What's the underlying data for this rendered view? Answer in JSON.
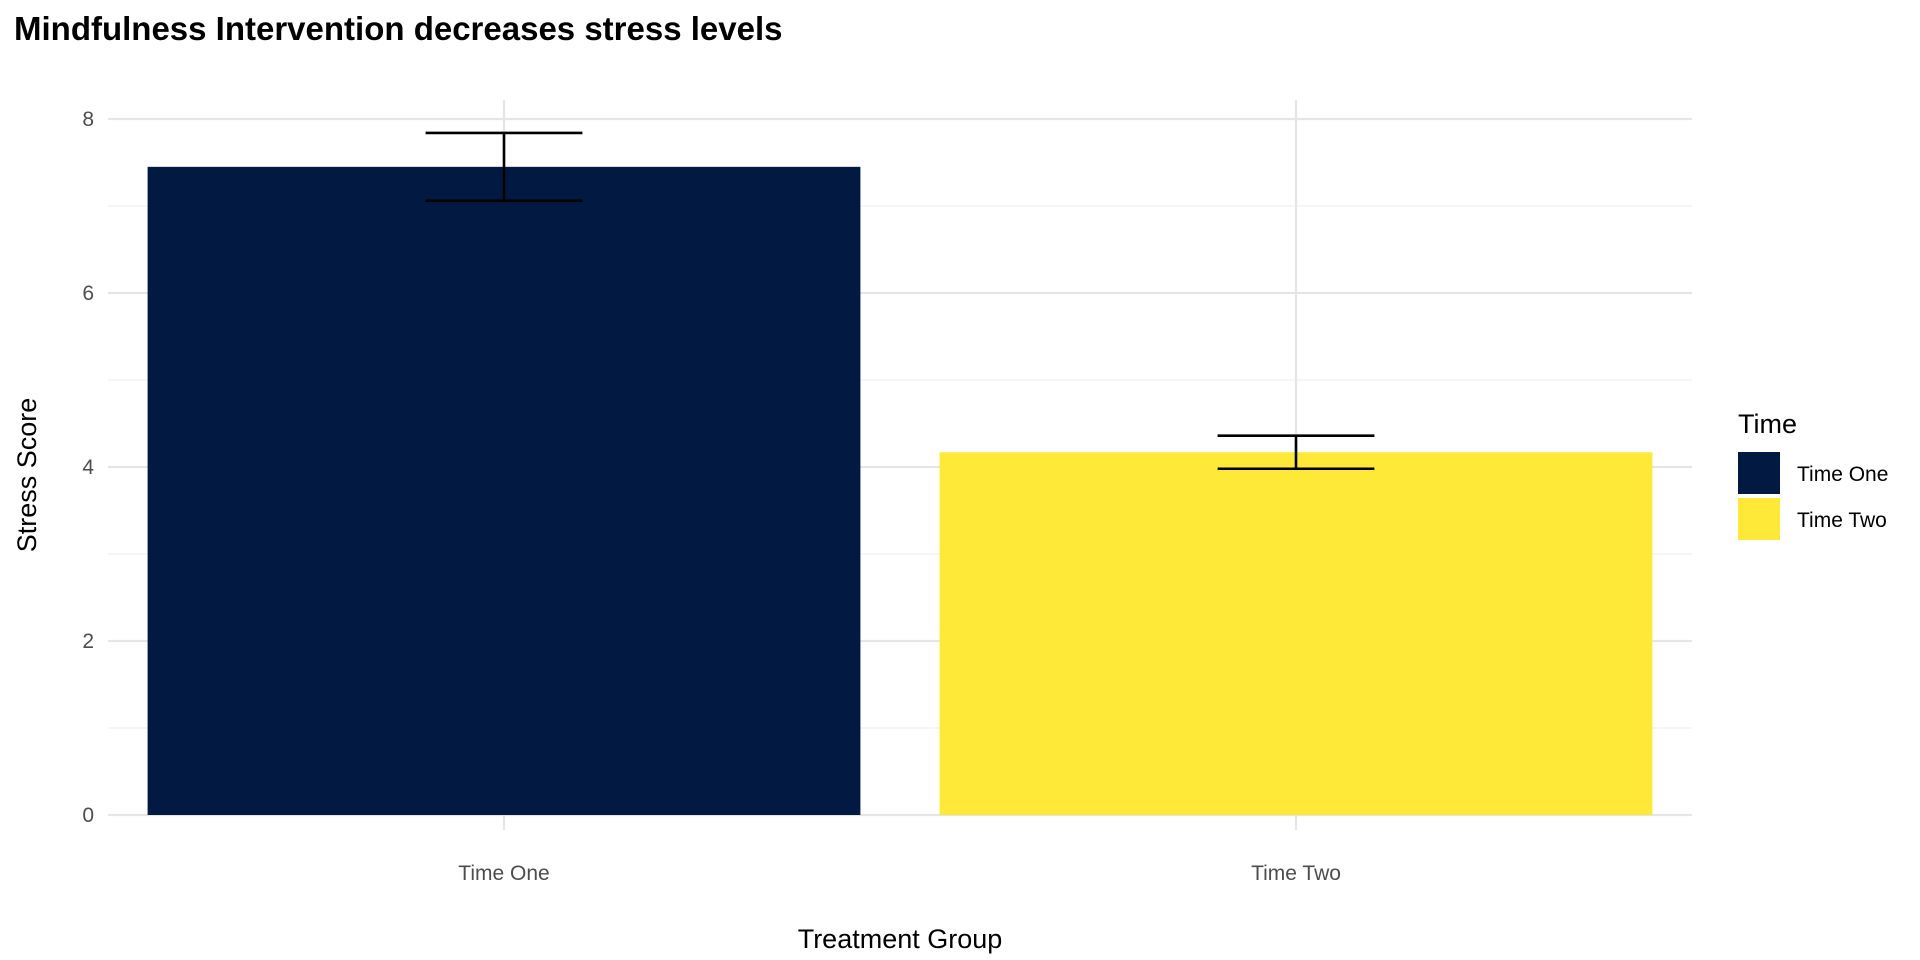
{
  "chart_data": {
    "type": "bar",
    "title": "Mindfulness Intervention decreases stress levels",
    "xlabel": "Treatment Group",
    "ylabel": "Stress Score",
    "categories": [
      "Time One",
      "Time Two"
    ],
    "values": [
      7.45,
      4.17
    ],
    "error_low": [
      7.06,
      3.98
    ],
    "error_high": [
      7.84,
      4.36
    ],
    "colors": [
      "#021941",
      "#FEE838"
    ],
    "ylim": [
      0,
      8.2
    ],
    "yticks": [
      0,
      2,
      4,
      6,
      8
    ],
    "ytick_labels": [
      "0",
      "2",
      "4",
      "6",
      "8"
    ],
    "grid": true,
    "legend": {
      "title": "Time",
      "position": "right",
      "entries": [
        "Time One",
        "Time Two"
      ]
    }
  }
}
